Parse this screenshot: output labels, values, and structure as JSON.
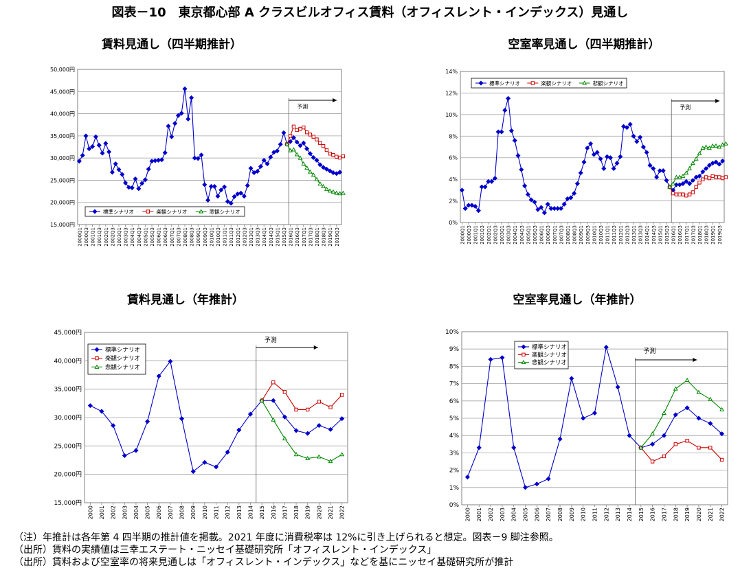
{
  "figure_title": "図表－10　東京都心部 A クラスビルオフィス賃料（オフィスレント・インデックス）見通し",
  "panels": {
    "rent_q": "賃料見通し（四半期推計）",
    "vac_q": "空室率見通し（四半期推計）",
    "rent_y": "賃料見通し（年推計）",
    "vac_y": "空室率見通し（年推計）"
  },
  "forecast_label": "予測",
  "notes": [
    "（注）年推計は各年第 4 四半期の推計値を掲載。2021 年度に消費税率は 12%に引き上げられると想定。図表－9 脚注参照。",
    "（出所）賃料の実績値は三幸エステート・ニッセイ基礎研究所「オフィスレント・インデックス」",
    "（出所）賃料および空室率の将来見通しは「オフィスレント・インデックス」などを基にニッセイ基礎研究所が推計"
  ],
  "colors": {
    "standard": "#0000cc",
    "optimistic": "#cc0000",
    "pessimistic": "#008800"
  },
  "chart_data": [
    {
      "id": "rent_q",
      "type": "line",
      "ylim": [
        15000,
        50000
      ],
      "yticks": [
        "15,000円",
        "20,000円",
        "25,000円",
        "30,000円",
        "35,000円",
        "40,000円",
        "45,000円",
        "50,000円"
      ],
      "x_tick_labels": [
        "2000Q1",
        "2000Q3",
        "2001Q1",
        "2001Q3",
        "2002Q1",
        "2002Q3",
        "2003Q1",
        "2003Q3",
        "2004Q1",
        "2004Q3",
        "2005Q1",
        "2005Q3",
        "2006Q1",
        "2006Q3",
        "2007Q1",
        "2007Q3",
        "2008Q1",
        "2008Q3",
        "2009Q1",
        "2009Q3",
        "2010Q1",
        "2010Q3",
        "2011Q1",
        "2011Q3",
        "2012Q1",
        "2012Q3",
        "2013Q1",
        "2013Q3",
        "2014Q1",
        "2014Q3",
        "2015Q1",
        "2015Q3",
        "2016Q1",
        "2016Q3",
        "2017Q1",
        "2017Q3",
        "2018Q1",
        "2018Q3",
        "2019Q1",
        "2019Q3"
      ],
      "x_tick_step": 2,
      "n_points": 80,
      "forecast_start": 64,
      "legend": [
        "標準シナリオ",
        "楽観シナリオ",
        "悲観シナリオ"
      ],
      "series": [
        {
          "name": "標準シナリオ",
          "start": 0,
          "values": [
            29300,
            30600,
            35000,
            32100,
            32600,
            34800,
            32900,
            31100,
            33300,
            31400,
            26800,
            28700,
            27400,
            26300,
            24400,
            23400,
            23300,
            25300,
            23100,
            24300,
            25100,
            27500,
            29300,
            29400,
            29500,
            29600,
            31200,
            37200,
            34800,
            37800,
            39600,
            40100,
            45600,
            38800,
            43600,
            30000,
            29900,
            30700,
            24000,
            20500,
            23600,
            23600,
            21400,
            22800,
            23500,
            20200,
            19800,
            21300,
            21900,
            22100,
            21400,
            23800,
            27700,
            26700,
            27000,
            28100,
            29500,
            28700,
            30200,
            31300,
            31600,
            33100,
            35700,
            33100,
            33700,
            34600,
            33600,
            32800,
            33400,
            32100,
            31000,
            30100,
            29500,
            28500,
            27900,
            27500,
            27100,
            26700,
            26500,
            26800
          ]
        },
        {
          "name": "楽観シナリオ",
          "start": 63,
          "values": [
            33100,
            35000,
            37100,
            36300,
            36600,
            36900,
            35800,
            35300,
            34800,
            34200,
            33400,
            32700,
            31800,
            31000,
            30700,
            30300,
            30100,
            30400
          ]
        },
        {
          "name": "悲観シナリオ",
          "start": 63,
          "values": [
            33100,
            31700,
            31900,
            30800,
            30000,
            28700,
            27800,
            26900,
            26200,
            25200,
            24200,
            23600,
            23000,
            22600,
            22400,
            22100,
            22000,
            22100
          ]
        }
      ]
    },
    {
      "id": "vac_q",
      "type": "line",
      "ylim": [
        0,
        14
      ],
      "yticks": [
        "0%",
        "2%",
        "4%",
        "6%",
        "8%",
        "10%",
        "12%",
        "14%"
      ],
      "x_tick_labels": [
        "2000Q1",
        "2000Q3",
        "2001Q1",
        "2001Q3",
        "2002Q1",
        "2002Q3",
        "2003Q1",
        "2003Q3",
        "2004Q1",
        "2004Q3",
        "2005Q1",
        "2005Q3",
        "2006Q1",
        "2006Q3",
        "2007Q1",
        "2007Q3",
        "2008Q1",
        "2008Q3",
        "2009Q1",
        "2009Q3",
        "2010Q1",
        "2010Q3",
        "2011Q1",
        "2011Q3",
        "2012Q1",
        "2012Q3",
        "2013Q1",
        "2013Q3",
        "2014Q1",
        "2014Q3",
        "2015Q1",
        "2015Q3",
        "2016Q1",
        "2016Q3",
        "2017Q1",
        "2017Q3",
        "2018Q1",
        "2018Q3",
        "2019Q1",
        "2019Q3"
      ],
      "x_tick_step": 2,
      "n_points": 80,
      "forecast_start": 64,
      "legend": [
        "標準シナリオ",
        "楽観シナリオ",
        "悲観シナリオ"
      ],
      "series": [
        {
          "name": "標準シナリオ",
          "start": 0,
          "values": [
            3.0,
            1.3,
            1.6,
            1.6,
            1.5,
            1.1,
            3.3,
            3.3,
            3.8,
            3.8,
            4.1,
            8.4,
            8.4,
            10.4,
            11.5,
            8.5,
            7.6,
            6.2,
            4.9,
            3.4,
            2.6,
            2.1,
            1.9,
            1.2,
            1.4,
            0.9,
            1.7,
            1.3,
            1.3,
            1.3,
            1.3,
            1.7,
            2.2,
            2.3,
            2.7,
            3.6,
            4.6,
            5.6,
            6.9,
            7.3,
            6.3,
            6.5,
            5.9,
            5.0,
            6.1,
            6.0,
            5.0,
            5.5,
            6.1,
            8.9,
            8.8,
            9.1,
            8.0,
            7.5,
            7.9,
            7.0,
            6.5,
            5.3,
            5.0,
            4.2,
            4.8,
            4.8,
            3.9,
            3.3,
            3.0,
            3.5,
            3.5,
            3.6,
            3.8,
            3.6,
            3.9,
            4.2,
            4.3,
            4.7,
            5.0,
            5.3,
            5.5,
            5.6,
            5.4,
            5.7
          ]
        },
        {
          "name": "楽観シナリオ",
          "start": 63,
          "values": [
            3.3,
            2.7,
            2.6,
            2.6,
            2.6,
            2.5,
            2.6,
            2.8,
            3.3,
            3.7,
            4.0,
            4.2,
            4.1,
            4.3,
            4.2,
            4.2,
            4.1,
            4.2
          ]
        },
        {
          "name": "悲観シナリオ",
          "start": 63,
          "values": [
            3.3,
            3.6,
            4.2,
            4.2,
            4.3,
            4.6,
            5.0,
            5.5,
            5.9,
            6.4,
            6.9,
            7.0,
            6.9,
            7.1,
            7.1,
            7.0,
            7.2,
            7.3
          ]
        }
      ]
    },
    {
      "id": "rent_y",
      "type": "line",
      "ylim": [
        15000,
        45000
      ],
      "yticks": [
        "15,000円",
        "20,000円",
        "25,000円",
        "30,000円",
        "35,000円",
        "40,000円",
        "45,000円"
      ],
      "x_tick_labels": [
        "2000",
        "2001",
        "2002",
        "2003",
        "2004",
        "2005",
        "2006",
        "2007",
        "2008",
        "2009",
        "2010",
        "2011",
        "2012",
        "2013",
        "2014",
        "2015",
        "2016",
        "2017",
        "2018",
        "2019",
        "2020",
        "2021",
        "2022"
      ],
      "x_tick_step": 1,
      "n_points": 23,
      "forecast_start": 15,
      "legend": [
        "標準シナリオ",
        "楽観シナリオ",
        "悲観シナリオ"
      ],
      "series": [
        {
          "name": "標準シナリオ",
          "start": 0,
          "values": [
            32100,
            31100,
            28600,
            23300,
            24200,
            29300,
            37300,
            39900,
            29800,
            20500,
            22100,
            21300,
            23900,
            27800,
            30600,
            33000,
            33000,
            30100,
            27700,
            27200,
            28600,
            27900,
            29800
          ]
        },
        {
          "name": "楽観シナリオ",
          "start": 15,
          "values": [
            33000,
            36200,
            34500,
            31400,
            31400,
            32800,
            31800,
            34000
          ]
        },
        {
          "name": "悲観シナリオ",
          "start": 15,
          "values": [
            33000,
            29600,
            26300,
            23500,
            22800,
            23100,
            22300,
            23500
          ]
        }
      ]
    },
    {
      "id": "vac_y",
      "type": "line",
      "ylim": [
        0,
        10
      ],
      "yticks": [
        "0%",
        "1%",
        "2%",
        "3%",
        "4%",
        "5%",
        "6%",
        "7%",
        "8%",
        "9%",
        "10%"
      ],
      "x_tick_labels": [
        "2000",
        "2001",
        "2002",
        "2003",
        "2004",
        "2005",
        "2006",
        "2007",
        "2008",
        "2009",
        "2010",
        "2011",
        "2012",
        "2013",
        "2014",
        "2015",
        "2016",
        "2017",
        "2018",
        "2019",
        "2020",
        "2021",
        "2022"
      ],
      "x_tick_step": 1,
      "n_points": 23,
      "forecast_start": 15,
      "legend": [
        "標準シナリオ",
        "楽観シナリオ",
        "悲観シナリオ"
      ],
      "series": [
        {
          "name": "標準シナリオ",
          "start": 0,
          "values": [
            1.6,
            3.3,
            8.4,
            8.5,
            3.3,
            1.0,
            1.2,
            1.5,
            3.8,
            7.3,
            5.0,
            5.3,
            9.1,
            6.8,
            4.0,
            3.3,
            3.5,
            4.0,
            5.2,
            5.6,
            5.0,
            4.7,
            4.1
          ]
        },
        {
          "name": "楽観シナリオ",
          "start": 15,
          "values": [
            3.3,
            2.5,
            2.8,
            3.5,
            3.7,
            3.3,
            3.3,
            2.6
          ]
        },
        {
          "name": "悲観シナリオ",
          "start": 15,
          "values": [
            3.3,
            4.1,
            5.3,
            6.7,
            7.2,
            6.5,
            6.1,
            5.5
          ]
        }
      ]
    }
  ]
}
